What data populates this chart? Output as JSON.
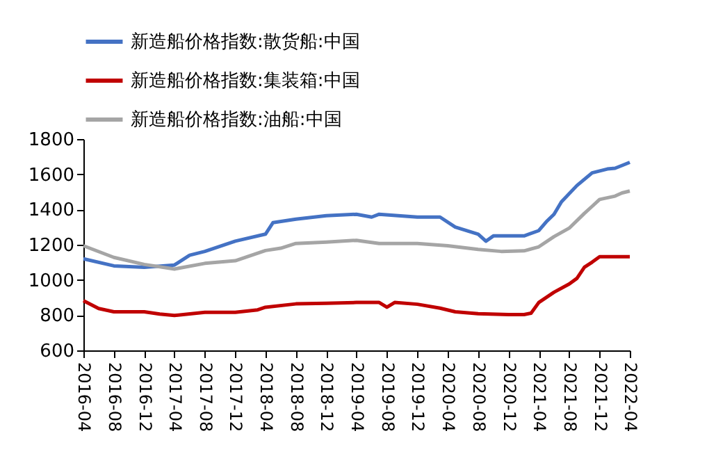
{
  "chart_data": {
    "type": "line",
    "legend": "top",
    "grid": false,
    "ylim": [
      600,
      1800
    ],
    "yticks": [
      600,
      800,
      1000,
      1200,
      1400,
      1600,
      1800
    ],
    "xlim": [
      "2016-04",
      "2022-04"
    ],
    "xticks": [
      "2016-04",
      "2016-08",
      "2016-12",
      "2017-04",
      "2017-08",
      "2017-12",
      "2018-04",
      "2018-08",
      "2018-12",
      "2019-04",
      "2019-08",
      "2019-12",
      "2020-04",
      "2020-08",
      "2020-12",
      "2021-04",
      "2021-08",
      "2021-12",
      "2022-04"
    ],
    "series": [
      {
        "name": "新造船价格指数:散货船:中国",
        "color": "#4472c4",
        "x": [
          "2016-04",
          "2016-08",
          "2016-12",
          "2017-04",
          "2017-06",
          "2017-08",
          "2017-12",
          "2018-04",
          "2018-05",
          "2018-08",
          "2018-12",
          "2019-04",
          "2019-06",
          "2019-07",
          "2019-12",
          "2020-03",
          "2020-05",
          "2020-08",
          "2020-09",
          "2020-10",
          "2021-02",
          "2021-04",
          "2021-05",
          "2021-06",
          "2021-07",
          "2021-09",
          "2021-11",
          "2022-01",
          "2022-02",
          "2022-03",
          "2022-04"
        ],
        "values": [
          1120,
          1080,
          1072,
          1085,
          1140,
          1162,
          1220,
          1260,
          1325,
          1345,
          1365,
          1373,
          1357,
          1373,
          1357,
          1357,
          1300,
          1260,
          1220,
          1250,
          1250,
          1280,
          1330,
          1373,
          1444,
          1536,
          1608,
          1630,
          1634,
          1650,
          1668
        ]
      },
      {
        "name": "新造船价格指数:集装箱:中国",
        "color": "#c00000",
        "x": [
          "2016-04",
          "2016-06",
          "2016-08",
          "2016-12",
          "2017-02",
          "2017-04",
          "2017-08",
          "2017-12",
          "2018-03",
          "2018-04",
          "2018-08",
          "2018-12",
          "2019-04",
          "2019-07",
          "2019-08",
          "2019-09",
          "2019-12",
          "2020-03",
          "2020-05",
          "2020-08",
          "2020-12",
          "2021-02",
          "2021-03",
          "2021-04",
          "2021-06",
          "2021-08",
          "2021-09",
          "2021-10",
          "2021-11",
          "2021-12",
          "2022-04"
        ],
        "values": [
          882,
          838,
          819,
          819,
          806,
          798,
          816,
          816,
          830,
          845,
          864,
          867,
          872,
          872,
          845,
          872,
          862,
          840,
          819,
          808,
          803,
          803,
          811,
          872,
          930,
          977,
          1009,
          1072,
          1101,
          1132,
          1132
        ]
      },
      {
        "name": "新造船价格指数:油船:中国",
        "color": "#a5a5a5",
        "x": [
          "2016-04",
          "2016-08",
          "2016-12",
          "2017-04",
          "2017-08",
          "2017-12",
          "2018-04",
          "2018-06",
          "2018-08",
          "2018-12",
          "2019-04",
          "2019-07",
          "2019-12",
          "2020-04",
          "2020-08",
          "2020-11",
          "2021-02",
          "2021-04",
          "2021-06",
          "2021-08",
          "2021-10",
          "2021-11",
          "2021-12",
          "2022-02",
          "2022-03",
          "2022-04"
        ],
        "values": [
          1194,
          1128,
          1088,
          1062,
          1094,
          1109,
          1167,
          1180,
          1207,
          1215,
          1225,
          1207,
          1207,
          1194,
          1173,
          1162,
          1165,
          1188,
          1246,
          1294,
          1378,
          1418,
          1457,
          1476,
          1494,
          1505
        ]
      }
    ]
  }
}
